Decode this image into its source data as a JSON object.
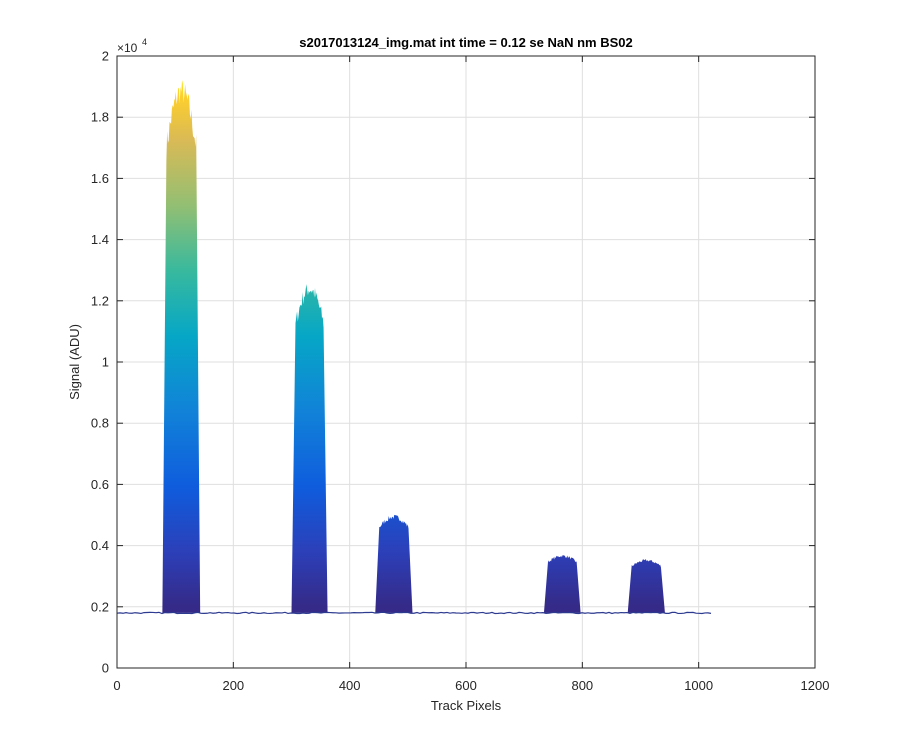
{
  "chart_data": {
    "type": "area",
    "title": "s2017013124_img.mat int time = 0.12 se  NaN nm BS02",
    "xlabel": "Track Pixels",
    "ylabel": "Signal (ADU)",
    "xlim": [
      0,
      1200
    ],
    "ylim": [
      0,
      20000
    ],
    "x_ticks": [
      0,
      200,
      400,
      600,
      800,
      1000,
      1200
    ],
    "y_ticks": [
      0,
      2000,
      4000,
      6000,
      8000,
      10000,
      12000,
      14000,
      16000,
      18000,
      20000
    ],
    "y_tick_labels": [
      "0",
      "0.2",
      "0.4",
      "0.6",
      "0.8",
      "1",
      "1.2",
      "1.4",
      "1.6",
      "1.8",
      "2"
    ],
    "y_exponent": {
      "base": "×10",
      "power": "4"
    },
    "grid": true,
    "colormap": "parula",
    "baseline": 1800,
    "x_range": [
      0,
      1024
    ],
    "bands": [
      {
        "start": 78,
        "end": 143,
        "low": 1800,
        "high": 19200
      },
      {
        "start": 300,
        "end": 362,
        "low": 1800,
        "high": 12600
      },
      {
        "start": 444,
        "end": 508,
        "low": 1800,
        "high": 5000
      },
      {
        "start": 734,
        "end": 797,
        "low": 1800,
        "high": 3700
      },
      {
        "start": 878,
        "end": 942,
        "low": 1800,
        "high": 3550
      }
    ]
  }
}
